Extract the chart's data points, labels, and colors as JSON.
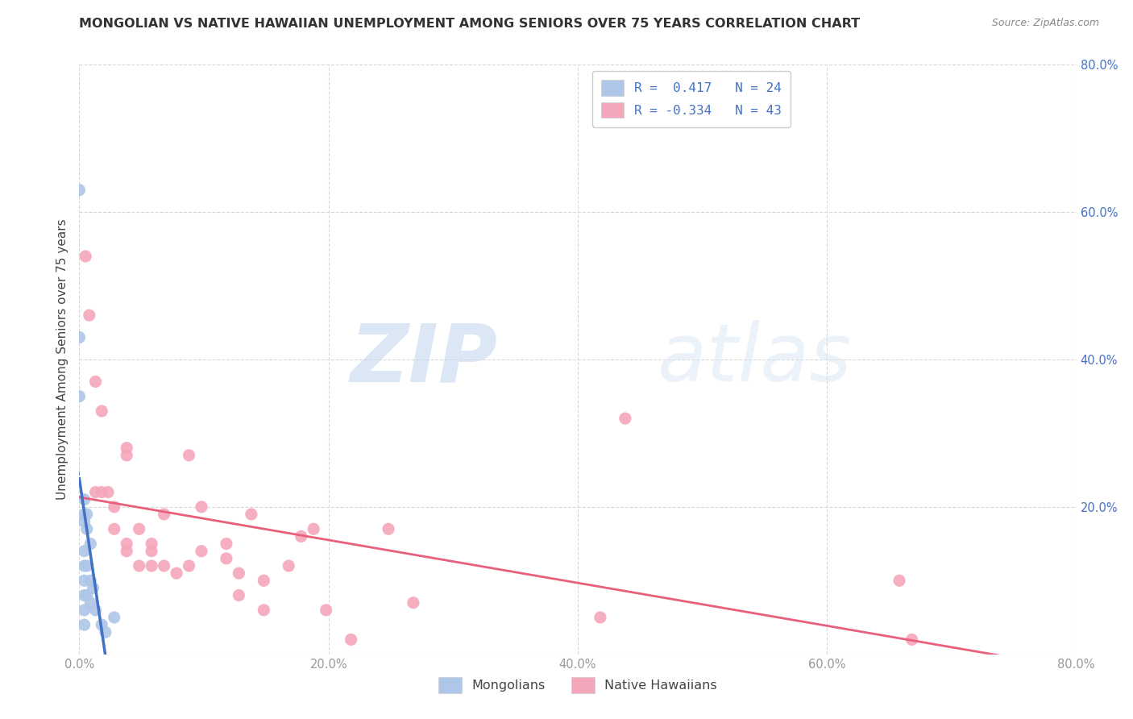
{
  "title": "MONGOLIAN VS NATIVE HAWAIIAN UNEMPLOYMENT AMONG SENIORS OVER 75 YEARS CORRELATION CHART",
  "source": "Source: ZipAtlas.com",
  "ylabel": "Unemployment Among Seniors over 75 years",
  "xlim": [
    0.0,
    0.8
  ],
  "ylim": [
    0.0,
    0.8
  ],
  "xticks": [
    0.0,
    0.2,
    0.4,
    0.6,
    0.8
  ],
  "yticks": [
    0.0,
    0.2,
    0.4,
    0.6,
    0.8
  ],
  "xticklabels": [
    "0.0%",
    "20.0%",
    "40.0%",
    "60.0%",
    "80.0%"
  ],
  "right_yticklabels": [
    "",
    "20.0%",
    "40.0%",
    "60.0%",
    "80.0%"
  ],
  "mongolia_R": 0.417,
  "mongolia_N": 24,
  "hawaiian_R": -0.334,
  "hawaiian_N": 43,
  "mongolia_color": "#aec6e8",
  "mongolia_line_color": "#4472c4",
  "hawaiian_color": "#f4a7ba",
  "hawaiian_line_color": "#e8607a",
  "mongolia_scatter_x": [
    0.0,
    0.0,
    0.0,
    0.004,
    0.004,
    0.004,
    0.004,
    0.004,
    0.004,
    0.004,
    0.004,
    0.004,
    0.006,
    0.006,
    0.006,
    0.006,
    0.009,
    0.009,
    0.009,
    0.011,
    0.013,
    0.018,
    0.021,
    0.028
  ],
  "mongolia_scatter_y": [
    0.63,
    0.43,
    0.35,
    0.21,
    0.19,
    0.18,
    0.14,
    0.12,
    0.1,
    0.08,
    0.06,
    0.04,
    0.19,
    0.17,
    0.12,
    0.08,
    0.15,
    0.1,
    0.07,
    0.09,
    0.06,
    0.04,
    0.03,
    0.05
  ],
  "hawaiian_scatter_x": [
    0.005,
    0.008,
    0.013,
    0.013,
    0.018,
    0.018,
    0.023,
    0.028,
    0.028,
    0.038,
    0.038,
    0.038,
    0.038,
    0.048,
    0.048,
    0.058,
    0.058,
    0.058,
    0.068,
    0.068,
    0.078,
    0.088,
    0.088,
    0.098,
    0.098,
    0.118,
    0.118,
    0.128,
    0.128,
    0.138,
    0.148,
    0.148,
    0.168,
    0.178,
    0.188,
    0.198,
    0.218,
    0.248,
    0.268,
    0.418,
    0.438,
    0.658,
    0.668
  ],
  "hawaiian_scatter_y": [
    0.54,
    0.46,
    0.37,
    0.22,
    0.33,
    0.22,
    0.22,
    0.2,
    0.17,
    0.28,
    0.27,
    0.15,
    0.14,
    0.17,
    0.12,
    0.15,
    0.14,
    0.12,
    0.19,
    0.12,
    0.11,
    0.27,
    0.12,
    0.2,
    0.14,
    0.15,
    0.13,
    0.11,
    0.08,
    0.19,
    0.1,
    0.06,
    0.12,
    0.16,
    0.17,
    0.06,
    0.02,
    0.17,
    0.07,
    0.05,
    0.32,
    0.1,
    0.02
  ],
  "background_color": "#ffffff",
  "grid_color": "#d8d8d8",
  "watermark_zip": "ZIP",
  "watermark_atlas": "atlas",
  "legend_labels": [
    "Mongolians",
    "Native Hawaiians"
  ],
  "legend_line1": "R =  0.417   N = 24",
  "legend_line2": "R = -0.334   N = 43",
  "tick_color": "#999999",
  "right_tick_color": "#4472c4",
  "title_fontsize": 11.5,
  "source_fontsize": 9,
  "ylabel_fontsize": 11,
  "tick_fontsize": 10.5,
  "legend_fontsize": 11.5,
  "scatter_size": 120
}
